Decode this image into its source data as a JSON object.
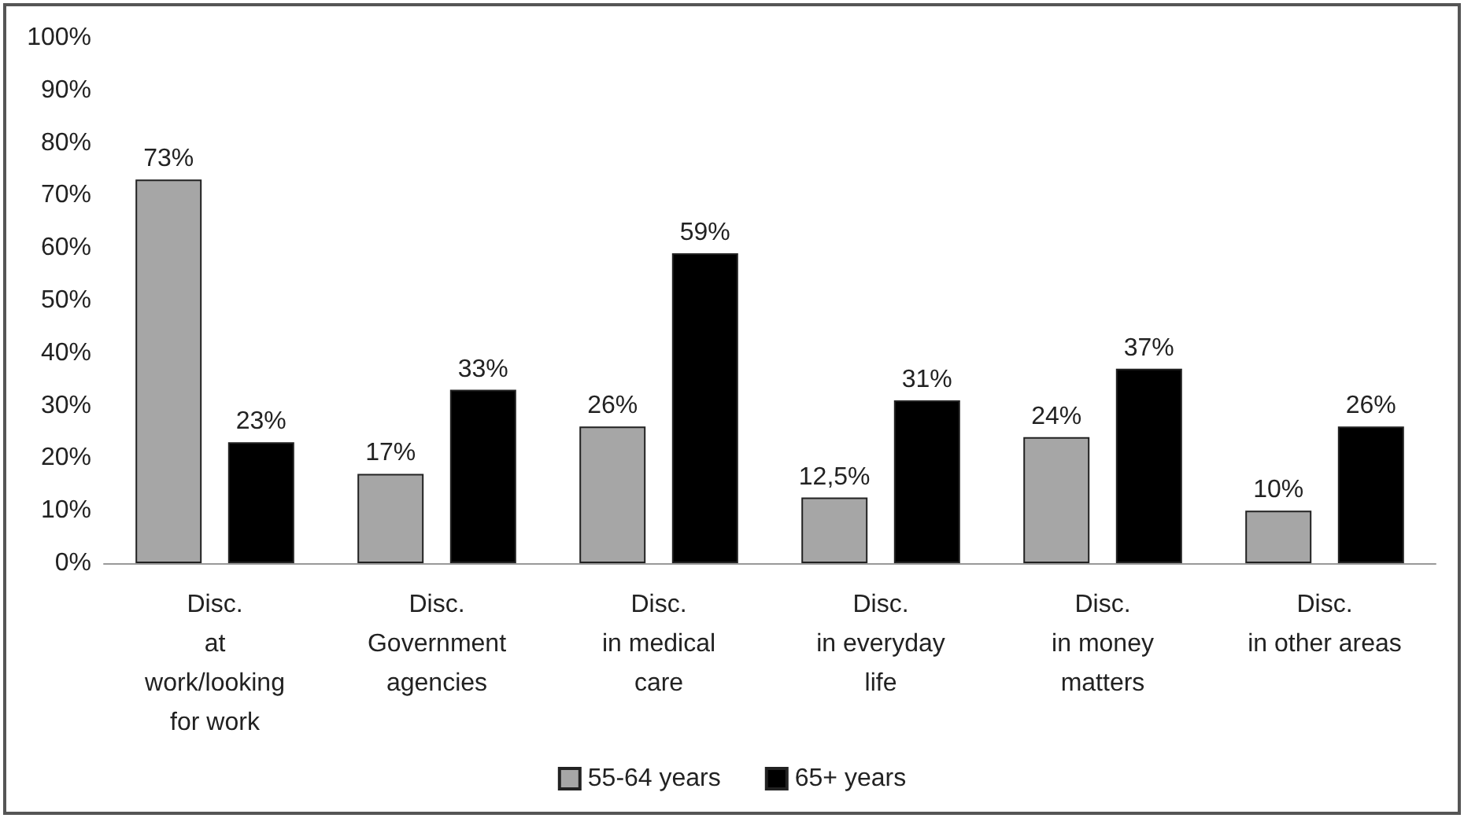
{
  "chart_data": {
    "type": "bar",
    "categories": [
      "Disc.\nat\nwork/looking\nfor work",
      "Disc.\nGovernment\nagencies",
      "Disc.\nin medical\ncare",
      "Disc.\nin everyday\nlife",
      "Disc.\nin money\nmatters",
      "Disc.\nin other areas"
    ],
    "series": [
      {
        "name": "55-64 years",
        "color": "#a6a6a6",
        "values": [
          73,
          17,
          26,
          12.5,
          24,
          10
        ],
        "value_labels": [
          "73%",
          "17%",
          "26%",
          "12,5%",
          "24%",
          "10%"
        ]
      },
      {
        "name": "65+ years",
        "color": "#000000",
        "values": [
          23,
          33,
          59,
          31,
          37,
          26
        ],
        "value_labels": [
          "23%",
          "33%",
          "59%",
          "31%",
          "37%",
          "26%"
        ]
      }
    ],
    "ylim": [
      0,
      100
    ],
    "yticks": [
      {
        "value": 0,
        "label": "0%"
      },
      {
        "value": 10,
        "label": "10%"
      },
      {
        "value": 20,
        "label": "20%"
      },
      {
        "value": 30,
        "label": "30%"
      },
      {
        "value": 40,
        "label": "40%"
      },
      {
        "value": 50,
        "label": "50%"
      },
      {
        "value": 60,
        "label": "60%"
      },
      {
        "value": 70,
        "label": "70%"
      },
      {
        "value": 80,
        "label": "80%"
      },
      {
        "value": 90,
        "label": "90%"
      },
      {
        "value": 100,
        "label": "100%"
      }
    ],
    "grid": false,
    "legend": "bottom"
  }
}
